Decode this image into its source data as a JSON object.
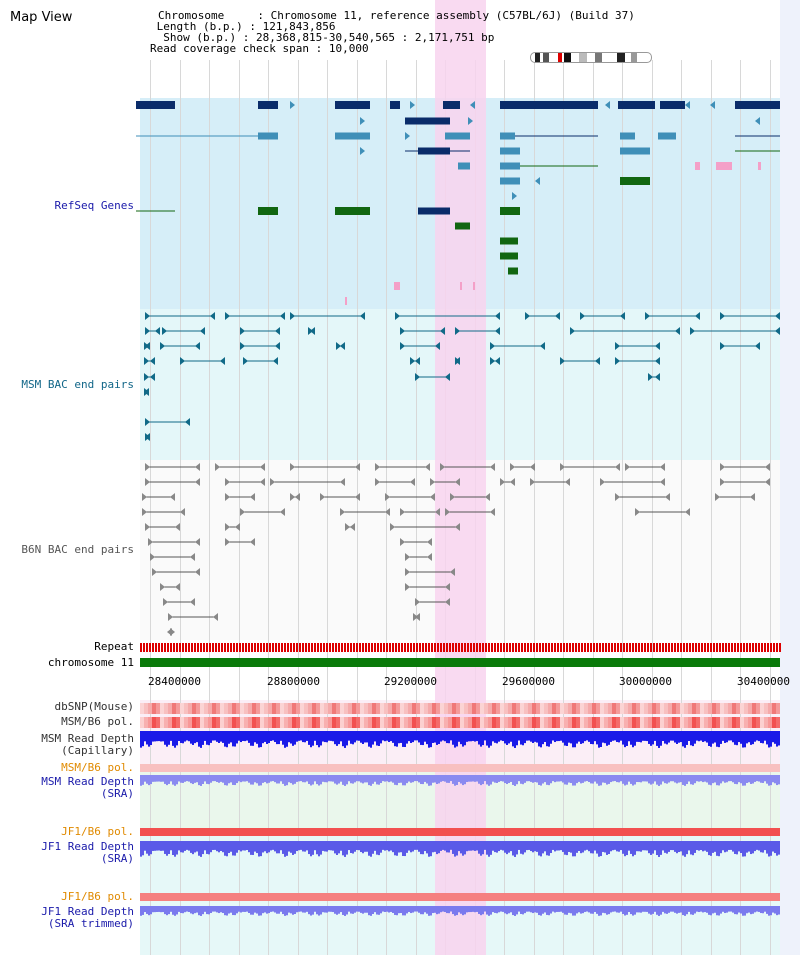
{
  "title": "Map View",
  "info": {
    "chromosome_label": "Chromosome",
    "chromosome_value": "Chromosome 11, reference assembly (C57BL/6J) (Build 37)",
    "length_label": "Length (b.p.)",
    "length_value": "121,843,856",
    "show_label": "Show (b.p.)",
    "show_value": "28,368,815-30,540,565 : 2,171,751 bp",
    "coverage_label": "Read coverage check span",
    "coverage_value": "10,000"
  },
  "tracks": {
    "refseq": "RefSeq Genes",
    "msm_bac": "MSM BAC end pairs",
    "b6n_bac": "B6N BAC end pairs",
    "repeat": "Repeat",
    "chromosome": "chromosome 11",
    "dbsnp": "dbSNP(Mouse)",
    "msm_pol": "MSM/B6 pol.",
    "msm_depth_cap": "MSM Read Depth\n(Capillary)",
    "msm_pol2": "MSM/B6 pol.",
    "msm_depth_sra": "MSM Read Depth\n(SRA)",
    "jf1_pol": "JF1/B6 pol.",
    "jf1_depth_sra": "JF1 Read Depth\n(SRA)",
    "jf1_pol2": "JF1/B6 pol.",
    "jf1_depth_trim": "JF1 Read Depth\n(SRA trimmed)"
  },
  "axis_ticks": [
    "28400000",
    "28800000",
    "29200000",
    "29600000",
    "30000000",
    "30400000"
  ],
  "colors": {
    "refseq_bg": "#d6eef8",
    "msm_bg": "#e2f6f8",
    "highlight": "#f8d4ee",
    "gene_dark": "#0a2c6a",
    "gene_mid": "#3f8fb8",
    "gene_green": "#116611",
    "msm_pair": "#116a88",
    "b6n_pair": "#555555",
    "chrom_green": "#0a7a0a"
  }
}
